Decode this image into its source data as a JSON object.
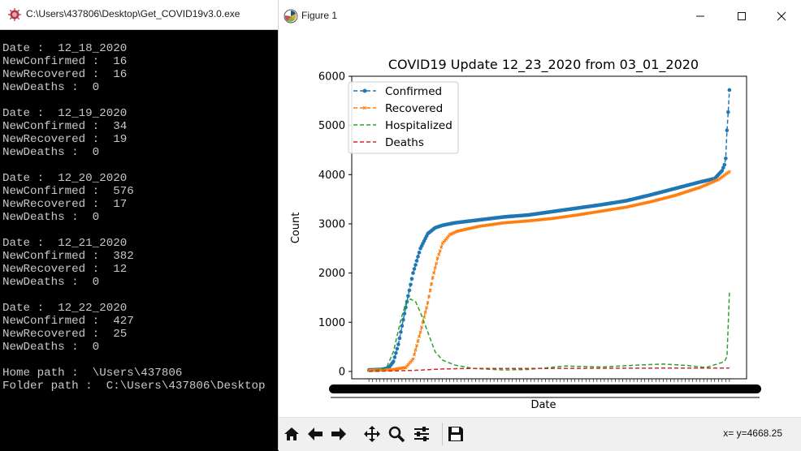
{
  "console": {
    "title": "C:\\Users\\437806\\Desktop\\Get_COVID19v3.0.exe",
    "lines": [
      "Date :  12_18_2020",
      "NewConfirmed :  16",
      "NewRecovered :  16",
      "NewDeaths :  0",
      "",
      "Date :  12_19_2020",
      "NewConfirmed :  34",
      "NewRecovered :  19",
      "NewDeaths :  0",
      "",
      "Date :  12_20_2020",
      "NewConfirmed :  576",
      "NewRecovered :  17",
      "NewDeaths :  0",
      "",
      "Date :  12_21_2020",
      "NewConfirmed :  382",
      "NewRecovered :  12",
      "NewDeaths :  0",
      "",
      "Date :  12_22_2020",
      "NewConfirmed :  427",
      "NewRecovered :  25",
      "NewDeaths :  0",
      "",
      "Home path :  \\Users\\437806",
      "Folder path :  C:\\Users\\437806\\Desktop"
    ]
  },
  "figure_window": {
    "title": "Figure 1",
    "coord_readout": "x= y=4668.25",
    "toolbar": [
      "home-icon",
      "back-arrow-icon",
      "forward-arrow-icon",
      "pan-icon",
      "zoom-icon",
      "configure-subplots-icon",
      "save-icon"
    ]
  },
  "chart_data": {
    "type": "line",
    "title": "COVID19 Update 12_23_2020 from 03_01_2020",
    "xlabel": "Date",
    "ylabel": "Count",
    "ylim": [
      -150,
      6000
    ],
    "yticks": [
      0,
      1000,
      2000,
      3000,
      4000,
      5000,
      6000
    ],
    "n_points": 295,
    "legend_position": "upper left",
    "series": [
      {
        "name": "Confirmed",
        "color": "#1f77b4",
        "marker": "o",
        "anchors": [
          [
            0,
            30
          ],
          [
            10,
            40
          ],
          [
            16,
            70
          ],
          [
            20,
            200
          ],
          [
            24,
            550
          ],
          [
            30,
            1300
          ],
          [
            36,
            2000
          ],
          [
            42,
            2500
          ],
          [
            48,
            2800
          ],
          [
            54,
            2920
          ],
          [
            60,
            2970
          ],
          [
            70,
            3020
          ],
          [
            90,
            3080
          ],
          [
            110,
            3140
          ],
          [
            130,
            3180
          ],
          [
            150,
            3250
          ],
          [
            170,
            3320
          ],
          [
            190,
            3390
          ],
          [
            210,
            3470
          ],
          [
            230,
            3590
          ],
          [
            250,
            3720
          ],
          [
            270,
            3850
          ],
          [
            282,
            3920
          ],
          [
            288,
            4080
          ],
          [
            290,
            4200
          ],
          [
            291,
            4330
          ],
          [
            292,
            4900
          ],
          [
            293,
            5270
          ],
          [
            294,
            5720
          ]
        ]
      },
      {
        "name": "Recovered",
        "color": "#ff7f0e",
        "marker": "x",
        "anchors": [
          [
            0,
            20
          ],
          [
            20,
            40
          ],
          [
            30,
            80
          ],
          [
            36,
            250
          ],
          [
            42,
            800
          ],
          [
            48,
            1400
          ],
          [
            52,
            1900
          ],
          [
            56,
            2300
          ],
          [
            60,
            2600
          ],
          [
            66,
            2780
          ],
          [
            72,
            2850
          ],
          [
            90,
            2950
          ],
          [
            110,
            3020
          ],
          [
            130,
            3060
          ],
          [
            150,
            3110
          ],
          [
            170,
            3180
          ],
          [
            190,
            3260
          ],
          [
            210,
            3340
          ],
          [
            230,
            3450
          ],
          [
            250,
            3580
          ],
          [
            270,
            3740
          ],
          [
            285,
            3900
          ],
          [
            294,
            4060
          ]
        ]
      },
      {
        "name": "Hospitalized",
        "color": "#2ca02c",
        "marker": "",
        "anchors": [
          [
            0,
            0
          ],
          [
            14,
            60
          ],
          [
            20,
            400
          ],
          [
            26,
            1050
          ],
          [
            30,
            1380
          ],
          [
            34,
            1470
          ],
          [
            38,
            1420
          ],
          [
            42,
            1200
          ],
          [
            48,
            800
          ],
          [
            54,
            400
          ],
          [
            60,
            230
          ],
          [
            70,
            130
          ],
          [
            85,
            60
          ],
          [
            110,
            30
          ],
          [
            130,
            40
          ],
          [
            160,
            110
          ],
          [
            190,
            90
          ],
          [
            220,
            130
          ],
          [
            240,
            150
          ],
          [
            260,
            120
          ],
          [
            275,
            80
          ],
          [
            284,
            150
          ],
          [
            290,
            200
          ],
          [
            292,
            300
          ],
          [
            294,
            1600
          ]
        ]
      },
      {
        "name": "Deaths",
        "color": "#d62728",
        "marker": "",
        "anchors": [
          [
            0,
            0
          ],
          [
            20,
            10
          ],
          [
            40,
            25
          ],
          [
            60,
            50
          ],
          [
            80,
            60
          ],
          [
            120,
            60
          ],
          [
            200,
            65
          ],
          [
            294,
            70
          ]
        ]
      }
    ]
  }
}
